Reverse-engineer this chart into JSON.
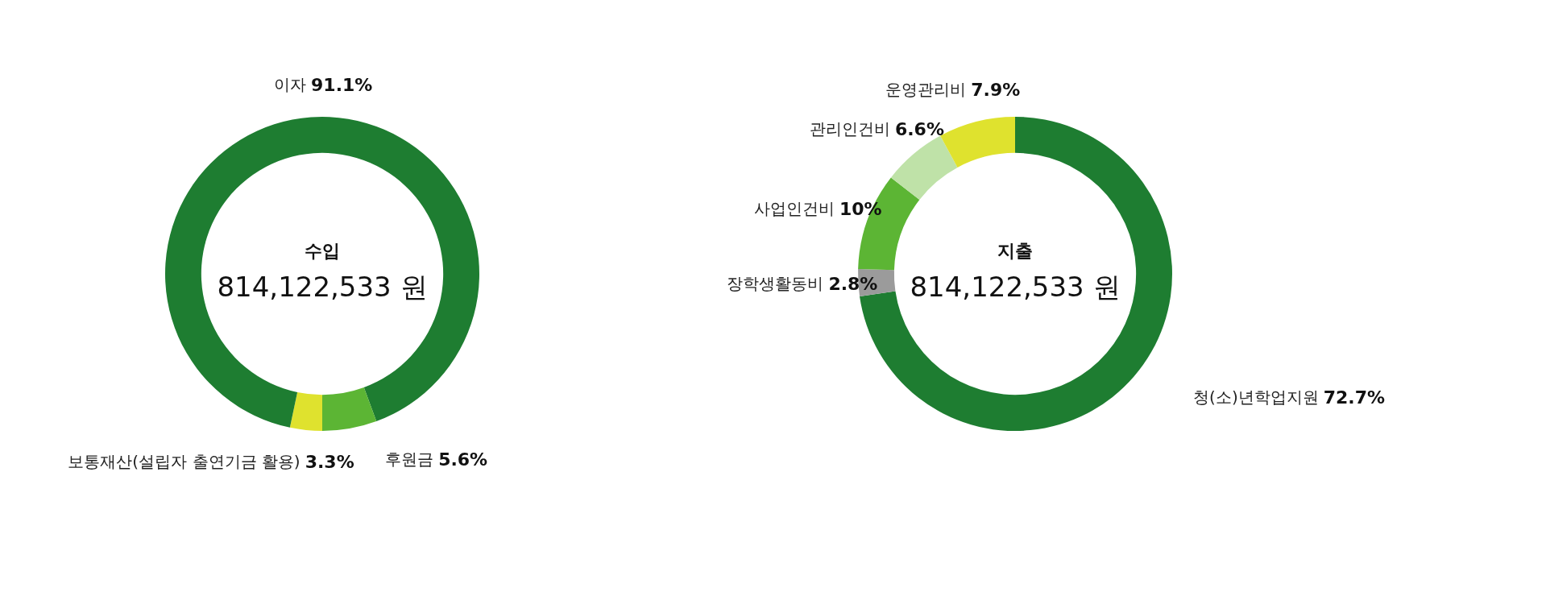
{
  "chart_data": [
    {
      "type": "donut",
      "title": "수입",
      "subtitle": "814,122,533 원",
      "value_labels": [
        "3.3%",
        "91.1%",
        "5.6%"
      ],
      "categories": [
        "보통재산(설립자 출연기금 활용)",
        "이자",
        "후원금"
      ],
      "values": [
        3.3,
        91.1,
        5.6
      ],
      "colors": [
        "#dfe22e",
        "#1e7d31",
        "#5cb534"
      ]
    },
    {
      "type": "donut",
      "title": "지출",
      "subtitle": "814,122,533 원",
      "value_labels": [
        "72.7%",
        "2.8%",
        "10%",
        "6.6%",
        "7.9%"
      ],
      "categories": [
        "청(소)년학업지원",
        "장학생활동비",
        "사업인건비",
        "관리인건비",
        "운영관리비"
      ],
      "values": [
        72.7,
        2.8,
        10,
        6.6,
        7.9
      ],
      "colors": [
        "#1e7d31",
        "#9b9b9b",
        "#5cb534",
        "#bfe2a8",
        "#dfe22e"
      ]
    }
  ]
}
